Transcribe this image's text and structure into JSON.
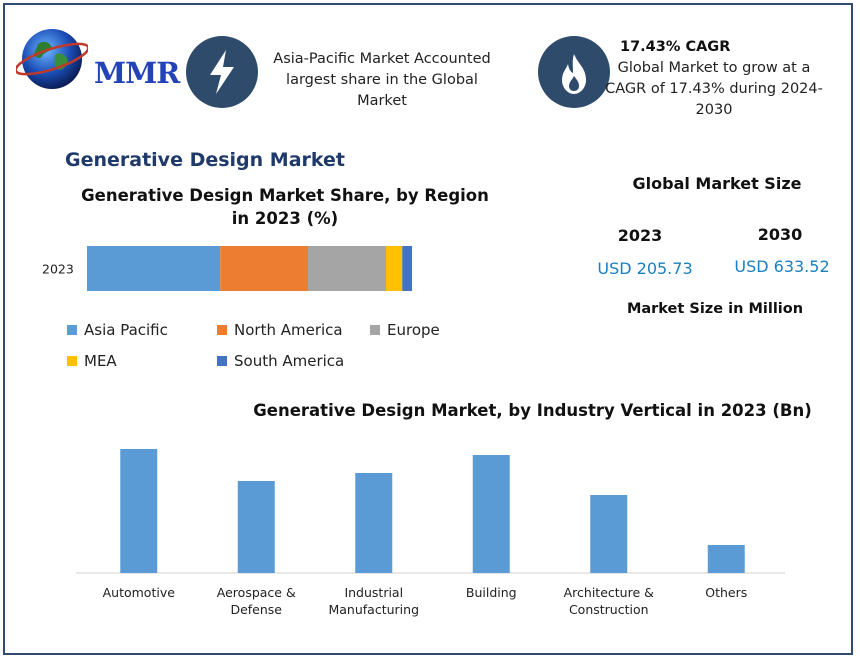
{
  "logo": {
    "text": "MMR",
    "icon": "globe-icon"
  },
  "highlights": [
    {
      "icon": "lightning-icon",
      "text_lines": [
        "Asia-Pacific Market Accounted",
        "largest share in the Global",
        "Market"
      ]
    },
    {
      "icon": "flame-icon",
      "title": "17.43% CAGR",
      "text_lines": [
        "Global Market to grow at a",
        "CAGR of 17.43% during 2024-",
        "2030"
      ]
    }
  ],
  "section_title": "Generative Design Market",
  "colors": {
    "asia_pacific": "#5b9bd5",
    "north_america": "#ed7d31",
    "europe": "#a5a5a5",
    "mea": "#ffc000",
    "south_america": "#4472c4",
    "bars": "#5b9bd5",
    "accent_value": "#1a7fc0",
    "icon_circle": "#2e4b6b"
  },
  "market_size": {
    "title": "Global Market Size",
    "years": [
      "2023",
      "2030"
    ],
    "values": [
      "USD 205.73",
      "USD 633.52"
    ],
    "footnote": "Market Size in Million"
  },
  "chart_data": [
    {
      "type": "bar",
      "orientation": "horizontal-stacked",
      "title_lines": [
        "Generative Design Market Share, by Region",
        "in 2023 (%)"
      ],
      "categories": [
        "2023"
      ],
      "series": [
        {
          "name": "Asia Pacific",
          "values": [
            41
          ]
        },
        {
          "name": "North America",
          "values": [
            27
          ]
        },
        {
          "name": "Europe",
          "values": [
            24
          ]
        },
        {
          "name": "MEA",
          "values": [
            5
          ]
        },
        {
          "name": "South America",
          "values": [
            3
          ]
        }
      ],
      "legend_position": "bottom",
      "xlim": [
        0,
        100
      ]
    },
    {
      "type": "bar",
      "title": "Generative Design Market, by Industry Vertical  in 2023 (Bn)",
      "categories": [
        [
          "Automotive"
        ],
        [
          "Aerospace &",
          "Defense"
        ],
        [
          "Industrial",
          "Manufacturing"
        ],
        [
          "Building"
        ],
        [
          "Architecture &",
          "Construction"
        ],
        [
          "Others"
        ]
      ],
      "values": [
        62,
        46,
        50,
        59,
        39,
        14
      ],
      "ylim": [
        0,
        65
      ],
      "grid": false
    }
  ]
}
